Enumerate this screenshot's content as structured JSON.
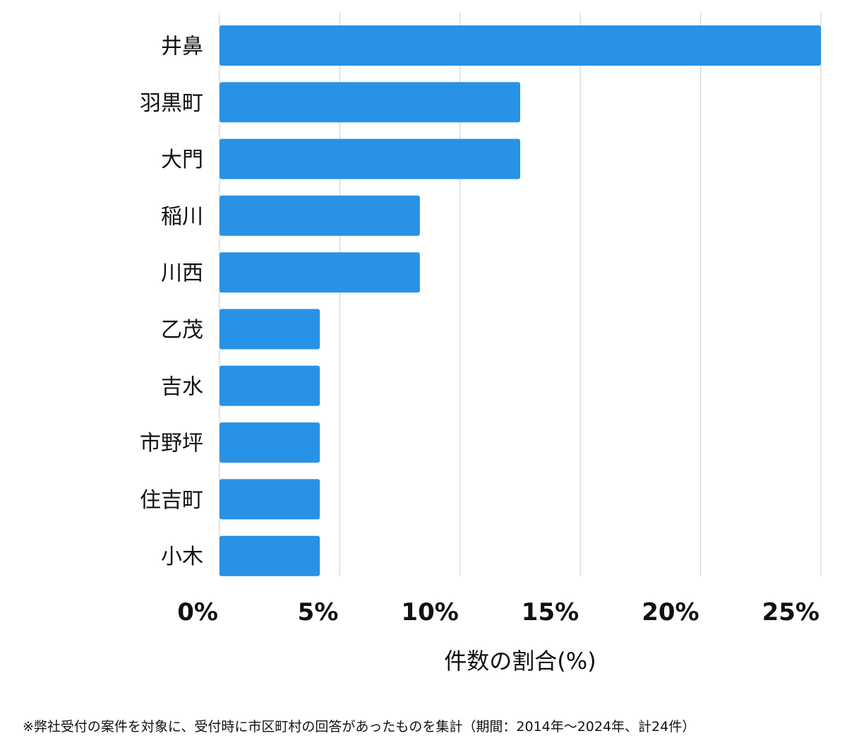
{
  "chart_data": {
    "type": "bar",
    "orientation": "horizontal",
    "categories": [
      "井鼻",
      "羽黒町",
      "大門",
      "稲川",
      "川西",
      "乙茂",
      "吉水",
      "市野坪",
      "住吉町",
      "小木"
    ],
    "values": [
      25.0,
      12.5,
      12.5,
      8.33,
      8.33,
      4.17,
      4.17,
      4.17,
      4.17,
      4.17
    ],
    "xlim": [
      0,
      25
    ],
    "xticks": [
      0,
      5,
      10,
      15,
      20,
      25
    ],
    "xtick_labels": [
      "0%",
      "5%",
      "10%",
      "15%",
      "20%",
      "25%"
    ],
    "xlabel": "件数の割合(%)",
    "ylabel": "",
    "grid": true,
    "bar_color": "#2892e6",
    "grid_color": "#d4d4d4",
    "footnote": "※弊社受付の案件を対象に、受付時に市区町村の回答があったものを集計（期間：2014年～2024年、計24件）"
  }
}
